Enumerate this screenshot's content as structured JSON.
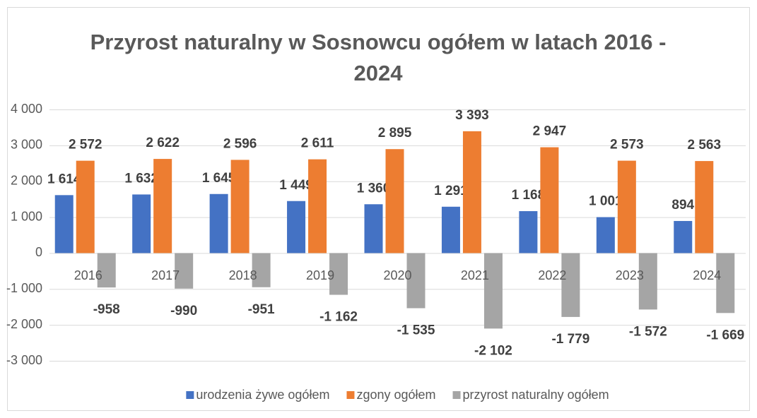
{
  "chart_data": {
    "type": "bar",
    "title": "Przyrost naturalny w Sosnowcu ogółem w latach 2016 - 2024",
    "categories": [
      "2016",
      "2017",
      "2018",
      "2019",
      "2020",
      "2021",
      "2022",
      "2023",
      "2024"
    ],
    "series": [
      {
        "name": "urodzenia żywe ogółem",
        "color": "#4472c4",
        "values": [
          1614,
          1632,
          1645,
          1449,
          1360,
          1291,
          1168,
          1001,
          894
        ],
        "value_labels": [
          "1 614",
          "1 632",
          "1 645",
          "1 449",
          "1 360",
          "1 291",
          "1 168",
          "1 001",
          "894"
        ]
      },
      {
        "name": "zgony ogółem",
        "color": "#ed7d31",
        "values": [
          2572,
          2622,
          2596,
          2611,
          2895,
          3393,
          2947,
          2573,
          2563
        ],
        "value_labels": [
          "2 572",
          "2 622",
          "2 596",
          "2 611",
          "2 895",
          "3 393",
          "2 947",
          "2 573",
          "2 563"
        ]
      },
      {
        "name": "przyrost naturalny ogółem",
        "color": "#a5a5a5",
        "values": [
          -958,
          -990,
          -951,
          -1162,
          -1535,
          -2102,
          -1779,
          -1572,
          -1669
        ],
        "value_labels": [
          "-958",
          "-990",
          "-951",
          "-1 162",
          "-1 535",
          "-2 102",
          "-1 779",
          "-1 572",
          "-1 669"
        ]
      }
    ],
    "ylim": [
      -3000,
      4000
    ],
    "yticks": [
      {
        "value": -3000,
        "label": "-3 000"
      },
      {
        "value": -2000,
        "label": "-2 000"
      },
      {
        "value": -1000,
        "label": "-1 000"
      },
      0,
      {
        "value": 1000,
        "label": "1 000"
      },
      {
        "value": 2000,
        "label": "2 000"
      },
      {
        "value": 3000,
        "label": "3 000"
      },
      {
        "value": 4000,
        "label": "4 000"
      }
    ],
    "grid": true,
    "legend": "bottom"
  }
}
